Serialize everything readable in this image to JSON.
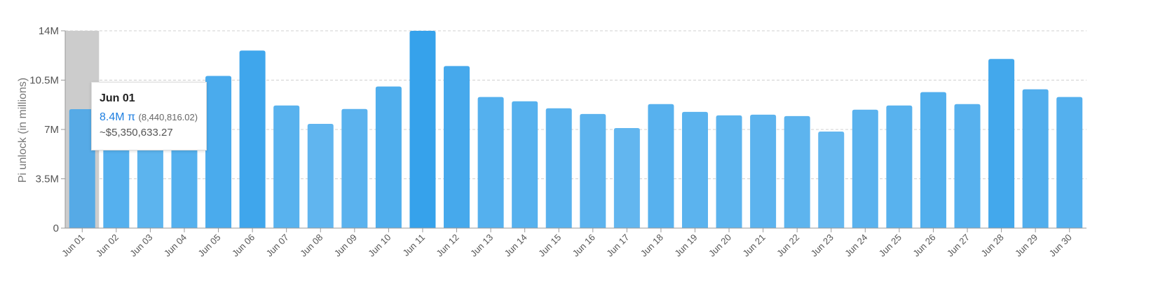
{
  "chart_data": {
    "type": "bar",
    "ylabel": "Pi unlock (in millions)",
    "ylim": [
      0,
      14
    ],
    "y_ticks": [
      "0",
      "3.5M",
      "7M",
      "10.5M",
      "14M"
    ],
    "y_tick_values": [
      0,
      3.5,
      7,
      10.5,
      14
    ],
    "grid": true,
    "categories": [
      "Jun 01",
      "Jun 02",
      "Jun 03",
      "Jun 04",
      "Jun 05",
      "Jun 06",
      "Jun 07",
      "Jun 08",
      "Jun 09",
      "Jun 10",
      "Jun 11",
      "Jun 12",
      "Jun 13",
      "Jun 14",
      "Jun 15",
      "Jun 16",
      "Jun 17",
      "Jun 18",
      "Jun 19",
      "Jun 20",
      "Jun 21",
      "Jun 22",
      "Jun 23",
      "Jun 24",
      "Jun 25",
      "Jun 26",
      "Jun 27",
      "Jun 28",
      "Jun 29",
      "Jun 30"
    ],
    "values": [
      8.44,
      9.1,
      8.0,
      9.3,
      10.8,
      12.6,
      8.7,
      7.4,
      8.45,
      10.05,
      14.0,
      11.5,
      9.3,
      9.0,
      8.5,
      8.1,
      7.1,
      8.8,
      8.25,
      8.0,
      8.05,
      7.95,
      6.85,
      8.4,
      8.7,
      9.65,
      8.8,
      12.0,
      9.85,
      9.3
    ],
    "highlighted_category": "Jun 01",
    "colors": {
      "bar_light": "#66b8ef",
      "bar_dark": "#36a2eb",
      "hover_band": "#cccccc",
      "grid": "#d0d0d0",
      "axis": "#999999"
    }
  },
  "tooltip": {
    "date": "Jun 01",
    "value": "8.4M π",
    "exact": "(8,440,816.02)",
    "usd": "~$5,350,633.27"
  }
}
